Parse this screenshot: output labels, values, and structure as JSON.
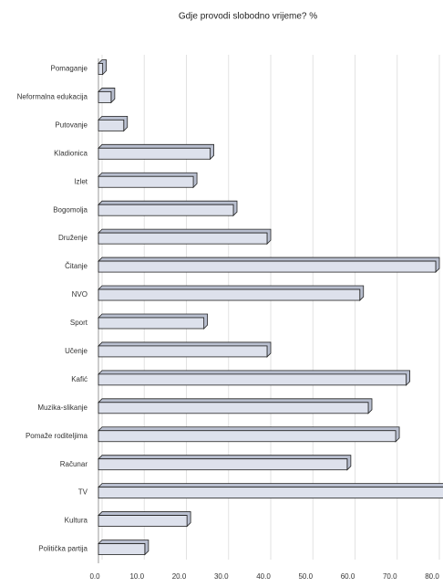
{
  "chart_data": {
    "type": "bar",
    "orientation": "horizontal",
    "title": "Gdje provodi slobodno vrijeme? %",
    "categories": [
      "Pomaganje",
      "Neformalna edukacija",
      "Putovanje",
      "Kladionica",
      "Izlet",
      "Bogomolja",
      "Druženje",
      "Čitanje",
      "NVO",
      "Sport",
      "Učenje",
      "Kafić",
      "Muzika-slikanje",
      "Pomaže roditeljima",
      "Računar",
      "TV",
      "Kultura",
      "Politička partija"
    ],
    "values": [
      1,
      3,
      6,
      26.5,
      22.5,
      32,
      40,
      80,
      62,
      25,
      40,
      73,
      64,
      70.5,
      59,
      82,
      21,
      11
    ],
    "color": "#dde1ec",
    "xlim": [
      0,
      82.5
    ],
    "xticks": [
      {
        "value": 0,
        "label": "0.0"
      },
      {
        "value": 10,
        "label": "10.0"
      },
      {
        "value": 20,
        "label": "20.0"
      },
      {
        "value": 30,
        "label": "30.0"
      },
      {
        "value": 40,
        "label": "40.0"
      },
      {
        "value": 50,
        "label": "50.0"
      },
      {
        "value": 60,
        "label": "60.0"
      },
      {
        "value": 70,
        "label": "70.0"
      },
      {
        "value": 80,
        "label": "80.0"
      }
    ],
    "grid": true
  }
}
